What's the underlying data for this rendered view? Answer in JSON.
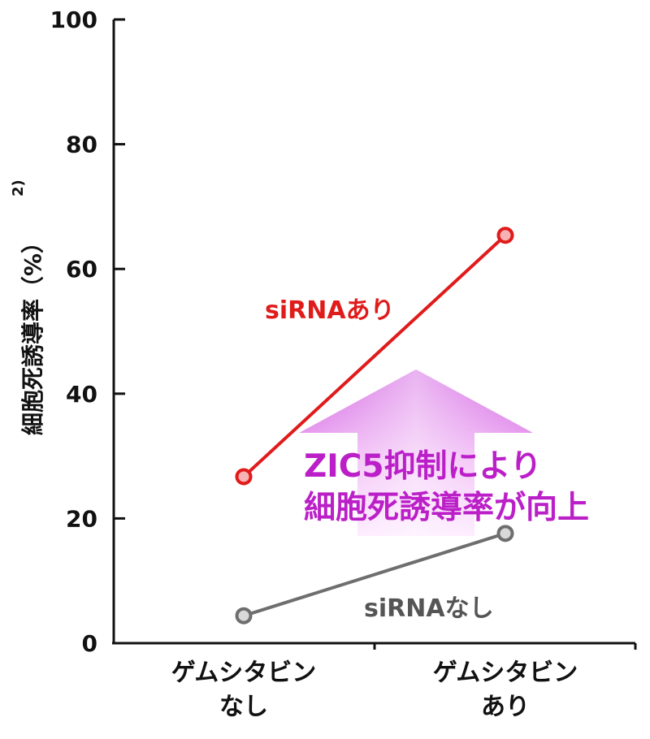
{
  "chart_data": {
    "type": "line",
    "categories": [
      [
        "ゲムシタビン",
        "なし"
      ],
      [
        "ゲムシタビン",
        "あり"
      ]
    ],
    "ylabel": "細胞死誘導率（%）",
    "ylabel_superscript": "2)",
    "ylim": [
      0,
      100
    ],
    "yticks": [
      0,
      20,
      40,
      60,
      80,
      100
    ],
    "grid": false,
    "series": [
      {
        "name": "siRNAあり",
        "values": [
          26.7,
          65.4
        ],
        "color": "#e01b1b",
        "marker_fill": "#f7b3b3"
      },
      {
        "name": "siRNAなし",
        "values": [
          4.4,
          17.6
        ],
        "color": "#6e6e6e",
        "marker_fill": "#d9d9d9"
      }
    ],
    "annotation": {
      "lines": [
        "ZIC5抑制により",
        "細胞死誘導率が向上"
      ],
      "color": "#bb1fc8",
      "arrow_color": "#cf55e0",
      "arrow": "up"
    }
  }
}
